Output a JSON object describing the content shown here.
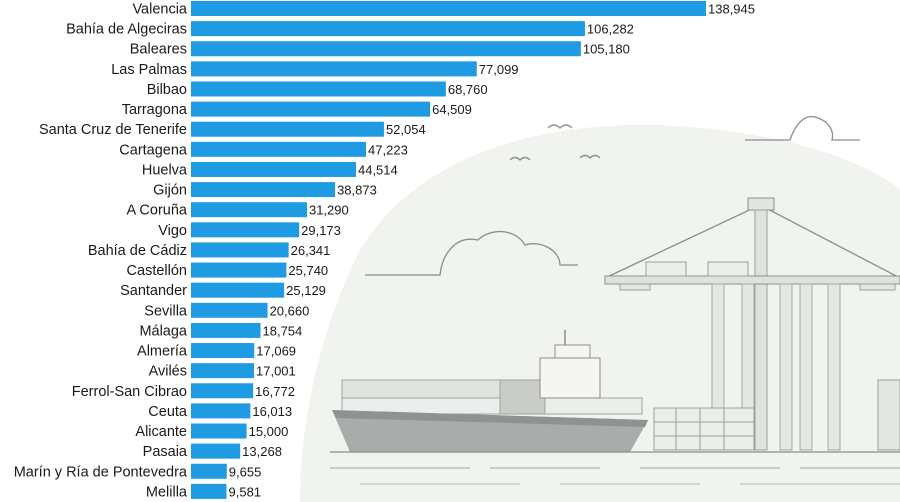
{
  "chart_data": {
    "type": "bar",
    "orientation": "horizontal",
    "categories": [
      "Valencia",
      "Bahía de Algeciras",
      "Baleares",
      "Las Palmas",
      "Bilbao",
      "Tarragona",
      "Santa Cruz de Tenerife",
      "Cartagena",
      "Huelva",
      "Gijón",
      "A Coruña",
      "Vigo",
      "Bahía de Cádiz",
      "Castellón",
      "Santander",
      "Sevilla",
      "Málaga",
      "Almería",
      "Avilés",
      "Ferrol-San Cibrao",
      "Ceuta",
      "Alicante",
      "Pasaia",
      "Marín y Ría de Pontevedra",
      "Melilla"
    ],
    "values": [
      138945,
      106282,
      105180,
      77099,
      68760,
      64509,
      52054,
      47223,
      44514,
      38873,
      31290,
      29173,
      26341,
      25740,
      25129,
      20660,
      18754,
      17069,
      17001,
      16772,
      16013,
      15000,
      13268,
      9655,
      9581
    ],
    "value_labels": [
      "138,945",
      "106,282",
      "105,180",
      "77,099",
      "68,760",
      "64,509",
      "52,054",
      "47,223",
      "44,514",
      "38,873",
      "31,290",
      "29,173",
      "26,341",
      "25,740",
      "25,129",
      "20,660",
      "18,754",
      "17,069",
      "17,001",
      "16,772",
      "16,013",
      "15,000",
      "13,268",
      "9,655",
      "9,581"
    ],
    "grid": false,
    "bar_color": "#1e9be2"
  }
}
